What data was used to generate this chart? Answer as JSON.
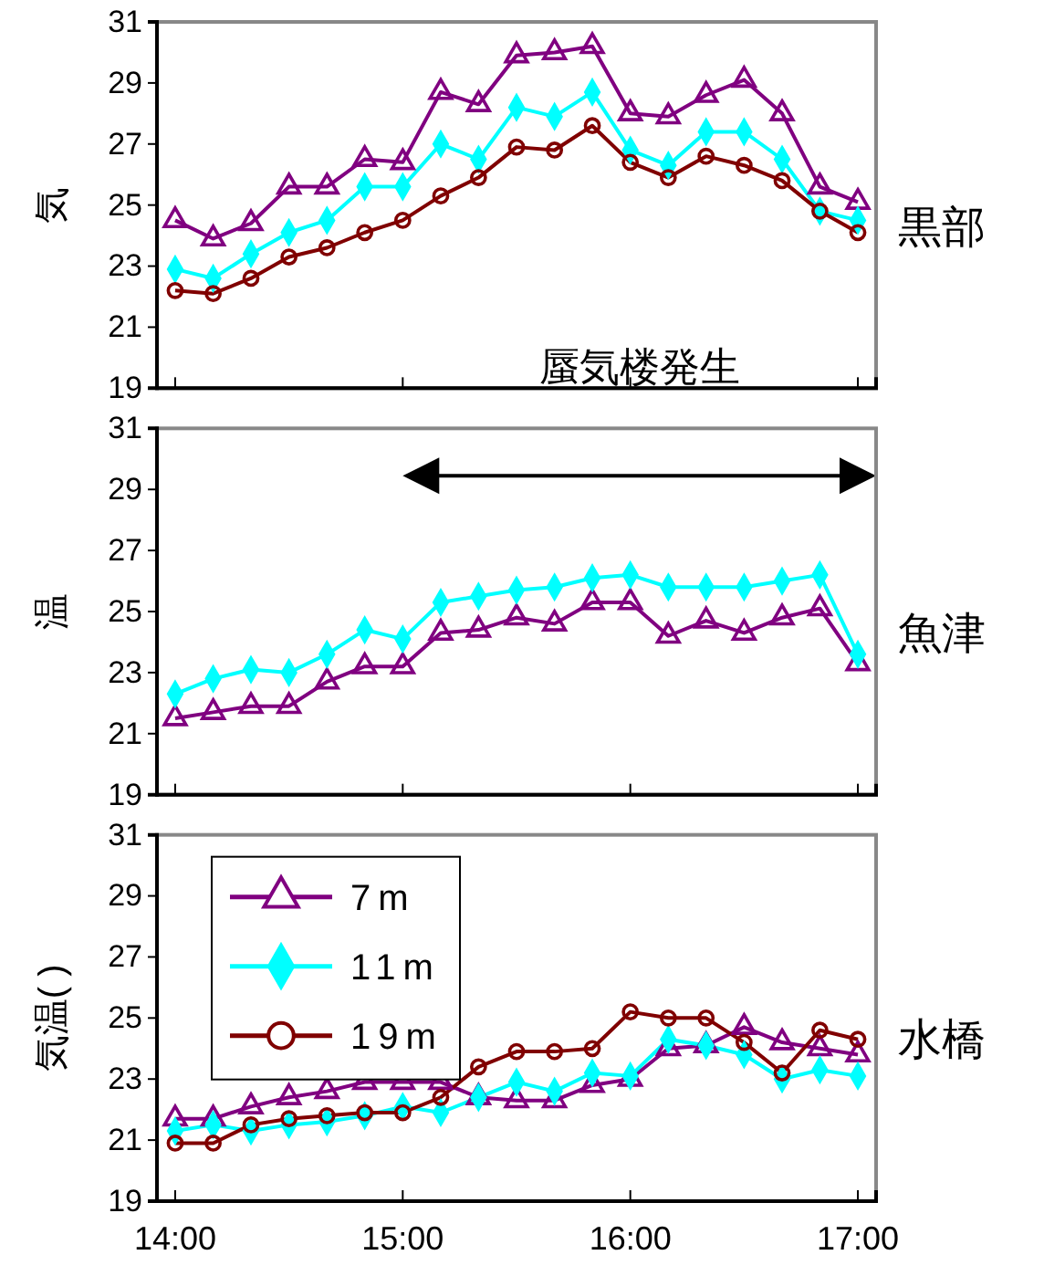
{
  "chart_data": [
    {
      "type": "line",
      "ylabel": "気",
      "x": [
        14,
        14.167,
        14.333,
        14.5,
        14.667,
        14.833,
        15,
        15.167,
        15.333,
        15.5,
        15.667,
        15.833,
        16,
        16.167,
        16.333,
        16.5,
        16.667,
        16.833,
        17
      ],
      "xlim": [
        13.92,
        17.08
      ],
      "xticks": [
        {
          "value": 14,
          "label": null
        },
        {
          "value": 15,
          "label": null
        },
        {
          "value": 16,
          "label": null
        },
        {
          "value": 17,
          "label": null
        }
      ],
      "ylim": [
        19,
        31
      ],
      "yticks": [
        19,
        21,
        23,
        25,
        27,
        29,
        31
      ],
      "tick_labels": "y",
      "legend": false,
      "grid": false,
      "line_style": "solid",
      "series": [
        {
          "color": "#800080",
          "marker": "triangle",
          "values": [
            24.5,
            23.9,
            24.4,
            25.6,
            25.6,
            26.5,
            26.4,
            28.7,
            28.3,
            29.9,
            30.0,
            30.2,
            28.0,
            27.9,
            28.6,
            29.1,
            28.0,
            25.6,
            25.1
          ]
        },
        {
          "color": "#00ffff",
          "marker": "diamond",
          "values": [
            22.9,
            22.6,
            23.4,
            24.1,
            24.5,
            25.6,
            25.6,
            27.0,
            26.5,
            28.2,
            27.9,
            28.7,
            26.8,
            26.3,
            27.4,
            27.4,
            26.5,
            24.8,
            24.5
          ]
        },
        {
          "color": "#800000",
          "marker": "circle",
          "values": [
            22.2,
            22.1,
            22.6,
            23.3,
            23.6,
            24.1,
            24.5,
            25.3,
            25.9,
            26.9,
            26.8,
            27.6,
            26.4,
            25.9,
            26.6,
            26.3,
            25.8,
            24.8,
            24.1
          ]
        }
      ],
      "annotations": [
        "黒部",
        "蜃気楼発生"
      ]
    },
    {
      "type": "line",
      "ylabel": "温",
      "x": [
        14,
        14.167,
        14.333,
        14.5,
        14.667,
        14.833,
        15,
        15.167,
        15.333,
        15.5,
        15.667,
        15.833,
        16,
        16.167,
        16.333,
        16.5,
        16.667,
        16.833,
        17
      ],
      "xlim": [
        13.92,
        17.08
      ],
      "xticks": [
        {
          "value": 14,
          "label": null
        },
        {
          "value": 15,
          "label": null
        },
        {
          "value": 16,
          "label": null
        },
        {
          "value": 17,
          "label": null
        }
      ],
      "ylim": [
        19,
        31
      ],
      "yticks": [
        19,
        21,
        23,
        25,
        27,
        29,
        31
      ],
      "tick_labels": "y",
      "legend": false,
      "grid": false,
      "line_style": "solid",
      "series": [
        {
          "color": "#800080",
          "marker": "triangle",
          "values": [
            21.5,
            21.7,
            21.9,
            21.9,
            22.7,
            23.2,
            23.2,
            24.3,
            24.4,
            24.8,
            24.6,
            25.3,
            25.3,
            24.2,
            24.7,
            24.3,
            24.8,
            25.1,
            23.3
          ]
        },
        {
          "color": "#00ffff",
          "marker": "diamond",
          "values": [
            22.3,
            22.8,
            23.1,
            23.0,
            23.6,
            24.4,
            24.1,
            25.3,
            25.5,
            25.7,
            25.8,
            26.1,
            26.2,
            25.8,
            25.8,
            25.8,
            26.0,
            26.2,
            23.6
          ]
        }
      ],
      "annotations": [
        "魚津"
      ]
    },
    {
      "type": "line",
      "ylabel": "気温( )",
      "x": [
        14,
        14.167,
        14.333,
        14.5,
        14.667,
        14.833,
        15,
        15.167,
        15.333,
        15.5,
        15.667,
        15.833,
        16,
        16.167,
        16.333,
        16.5,
        16.667,
        16.833,
        17
      ],
      "xlim": [
        13.92,
        17.08
      ],
      "xticks": [
        {
          "value": 14,
          "label": "14:00"
        },
        {
          "value": 15,
          "label": "15:00"
        },
        {
          "value": 16,
          "label": "16:00"
        },
        {
          "value": 17,
          "label": "17:00"
        }
      ],
      "ylim": [
        19,
        31
      ],
      "yticks": [
        19,
        21,
        23,
        25,
        27,
        29,
        31
      ],
      "legend": "top left",
      "grid": false,
      "line_style": "solid",
      "series": [
        {
          "name": "7m",
          "color": "#800080",
          "marker": "triangle",
          "values": [
            21.7,
            21.7,
            22.1,
            22.4,
            22.6,
            22.9,
            22.9,
            22.9,
            22.4,
            22.3,
            22.3,
            22.8,
            23.0,
            24.0,
            24.1,
            24.7,
            24.2,
            24.0,
            23.8
          ]
        },
        {
          "name": "11m",
          "color": "#00ffff",
          "marker": "diamond",
          "values": [
            21.3,
            21.5,
            21.3,
            21.5,
            21.6,
            21.8,
            22.1,
            21.9,
            22.4,
            22.9,
            22.6,
            23.2,
            23.1,
            24.3,
            24.1,
            23.8,
            23.0,
            23.3,
            23.1
          ]
        },
        {
          "name": "19m",
          "color": "#800000",
          "marker": "circle",
          "values": [
            20.9,
            20.9,
            21.5,
            21.7,
            21.8,
            21.9,
            21.9,
            22.4,
            23.4,
            23.9,
            23.9,
            24.0,
            25.2,
            25.0,
            25.0,
            24.2,
            23.2,
            24.6,
            24.3
          ]
        }
      ],
      "annotations": [
        "水橋"
      ]
    }
  ]
}
